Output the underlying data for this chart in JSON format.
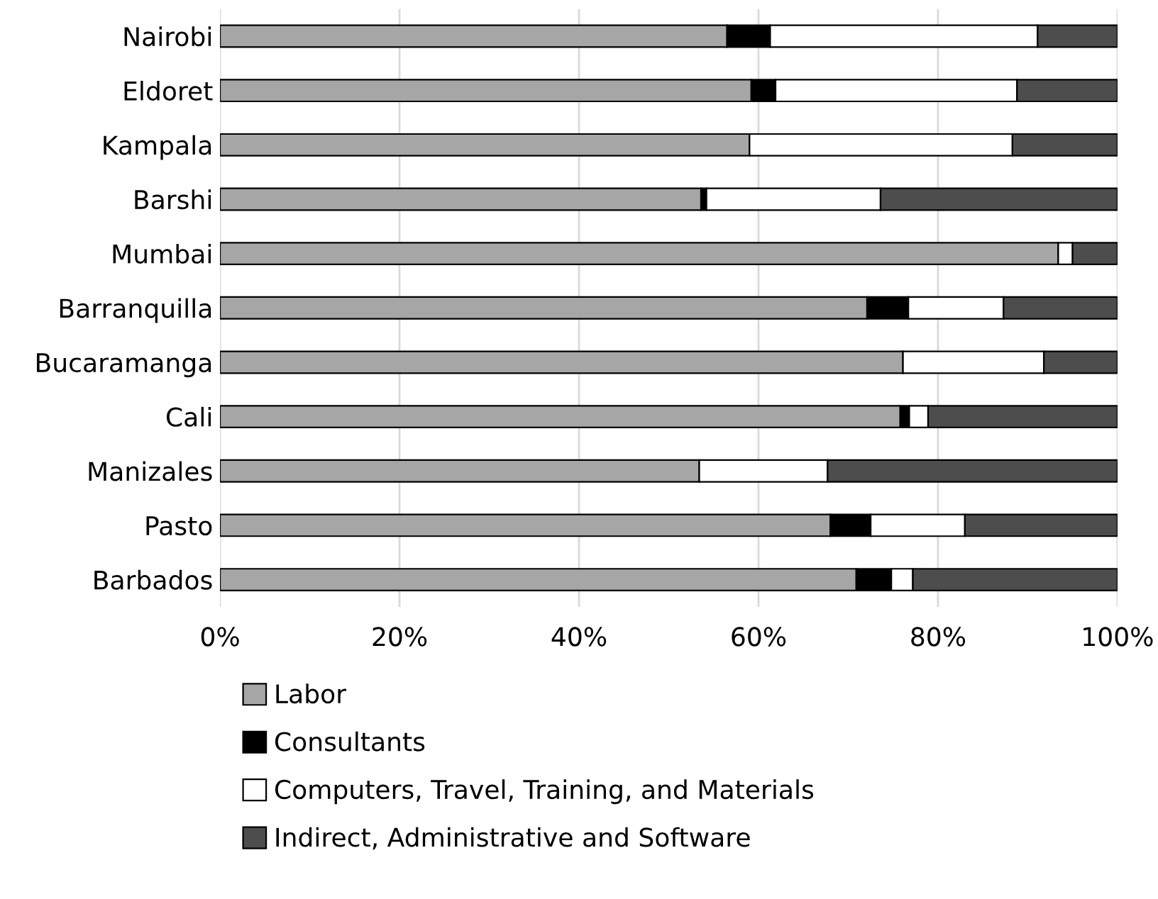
{
  "chart_data": {
    "type": "bar",
    "orientation": "horizontal",
    "stacked": true,
    "categories": [
      "Nairobi",
      "Eldoret",
      "Kampala",
      "Barshi",
      "Mumbai",
      "Barranquilla",
      "Bucaramanga",
      "Cali",
      "Manizales",
      "Pasto",
      "Barbados"
    ],
    "series": [
      {
        "name": "Labor",
        "color": "#a6a6a6",
        "values": [
          56.5,
          59.2,
          59.0,
          53.6,
          93.4,
          72.1,
          76.1,
          75.8,
          53.4,
          68.0,
          70.9
        ]
      },
      {
        "name": "Consultants",
        "color": "#000000",
        "values": [
          4.8,
          2.7,
          null,
          0.6,
          null,
          4.6,
          null,
          1.0,
          null,
          4.5,
          3.9
        ]
      },
      {
        "name": "Computers, Travel, Training, and Materials",
        "color": "#ffffff",
        "values": [
          29.8,
          26.9,
          29.3,
          19.4,
          1.6,
          10.6,
          15.7,
          2.1,
          14.3,
          10.5,
          2.4
        ]
      },
      {
        "name": "Indirect, Administrative and Software",
        "color": "#4d4d4d",
        "values": [
          8.9,
          11.2,
          11.7,
          26.4,
          5.0,
          12.7,
          8.2,
          21.1,
          32.3,
          17.0,
          22.8
        ]
      }
    ],
    "xlim": [
      0,
      100
    ],
    "xticks": [
      {
        "value": 0,
        "label": "0%"
      },
      {
        "value": 20,
        "label": "20%"
      },
      {
        "value": 40,
        "label": "40%"
      },
      {
        "value": 60,
        "label": "60%"
      },
      {
        "value": 80,
        "label": "80%"
      },
      {
        "value": 100,
        "label": "100%"
      }
    ],
    "grid": "x",
    "legend": "bottom"
  }
}
